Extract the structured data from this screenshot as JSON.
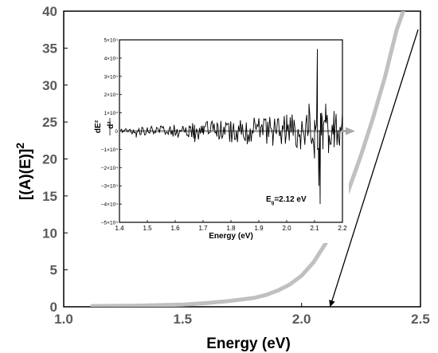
{
  "chart_data": [
    {
      "type": "line",
      "xlabel": "Energy (eV)",
      "ylabel": "[(A)(E)]",
      "ylabel_superscript": "2",
      "xlim": [
        1.0,
        2.5
      ],
      "ylim": [
        0,
        40
      ],
      "xticks": [
        "1.0",
        "1.5",
        "2.0",
        "2.5"
      ],
      "yticks": [
        "0",
        "5",
        "10",
        "15",
        "20",
        "25",
        "30",
        "35",
        "40"
      ],
      "grid": false,
      "series": [
        {
          "color": "#c0c0c0",
          "x": [
            1.12,
            1.3,
            1.5,
            1.6,
            1.7,
            1.8,
            1.85,
            1.9,
            1.95,
            2.0,
            2.05,
            2.1,
            2.15,
            2.2,
            2.25,
            2.3,
            2.35,
            2.4,
            2.45
          ],
          "y": [
            0.1,
            0.15,
            0.3,
            0.5,
            0.8,
            1.2,
            1.6,
            2.2,
            3.0,
            4.2,
            6.0,
            8.5,
            12.0,
            16.0,
            20.5,
            25.5,
            31.0,
            37.5,
            42.0
          ]
        },
        {
          "color": "#000000",
          "x": [
            2.12,
            2.5
          ],
          "y": [
            0,
            37.5
          ]
        }
      ],
      "annotations": [
        {
          "type": "arrow",
          "from": [
            2.5,
            37.5
          ],
          "to": [
            2.12,
            0
          ]
        }
      ]
    },
    {
      "type": "line",
      "inset": true,
      "xlabel": "Energy (eV)",
      "ylabel_numerator": "d²",
      "ylabel_denominator": "dE²",
      "xlim": [
        1.4,
        2.2
      ],
      "ylim": [
        -5,
        5
      ],
      "xticks": [
        "1.4",
        "1.5",
        "1.6",
        "1.7",
        "1.8",
        "1.9",
        "2.0",
        "2.1",
        "2.2"
      ],
      "yticks": [
        "5×10⁴",
        "4×10⁴",
        "3×10⁴",
        "2×10⁴",
        "1×10⁴",
        "0",
        "−1×10⁴",
        "−2×10⁴",
        "−3×10⁴",
        "−4×10⁴",
        "−5×10⁴"
      ],
      "annotation_text": "E",
      "annotation_subscript": "g",
      "annotation_value": "=2.12 eV",
      "series": [
        {
          "color": "#000000",
          "x": [
            1.4,
            1.45,
            1.46,
            1.5,
            1.55,
            1.6,
            1.65,
            1.67,
            1.7,
            1.75,
            1.8,
            1.85,
            1.9,
            1.95,
            2.0,
            2.05,
            2.08,
            2.1,
            2.11,
            2.115,
            2.12,
            2.125,
            2.13,
            2.14,
            2.15,
            2.17,
            2.19,
            2.2
          ],
          "y": [
            0,
            0.05,
            -0.35,
            0.2,
            0.25,
            -0.25,
            0.3,
            -0.6,
            0.3,
            -0.3,
            0.4,
            -0.5,
            0.7,
            -0.8,
            0.9,
            -1.0,
            1.5,
            -1.5,
            4.5,
            -3.0,
            -4.0,
            1.0,
            -1.0,
            1.5,
            -1.2,
            1.1,
            -0.8,
            1.0
          ]
        }
      ],
      "arrow": {
        "color": "#a8a8a8",
        "y": 0
      }
    }
  ]
}
